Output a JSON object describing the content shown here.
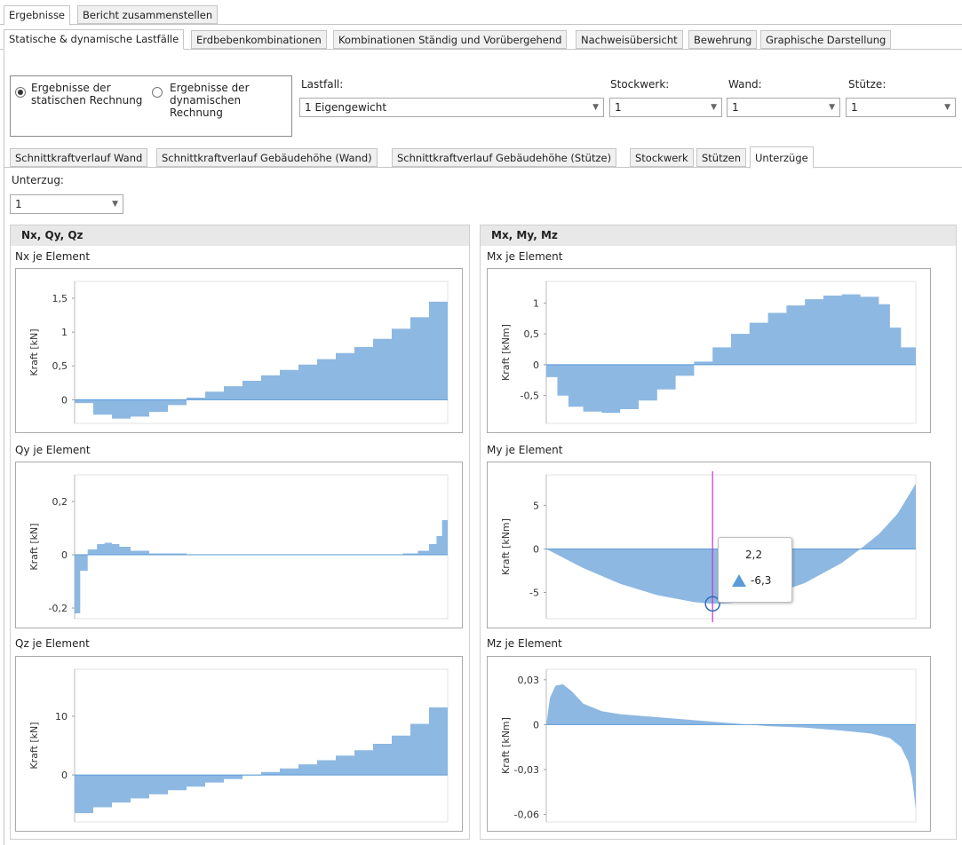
{
  "top_tabs": [
    "Ergebnisse",
    "Bericht zusammenstellen"
  ],
  "sub_tabs": [
    "Statische & dynamische Lastfälle",
    "Erdbebenkombinationen",
    "Kombinationen Ständig und Vorübergehend",
    "Nachweisübersicht",
    "Bewehrung",
    "Graphische Darstellung"
  ],
  "radio": {
    "static_label_1": "Ergebnisse der",
    "static_label_2": "statischen Rechnung",
    "dynamic_label_1": "Ergebnisse der",
    "dynamic_label_2": "dynamischen",
    "dynamic_label_3": "Rechnung",
    "selected": "static"
  },
  "filters": {
    "lastfall_label": "Lastfall:",
    "lastfall_value": "1 Eigengewicht",
    "stockwerk_label": "Stockwerk:",
    "stockwerk_value": "1",
    "wand_label": "Wand:",
    "wand_value": "1",
    "stuetze_label": "Stütze:",
    "stuetze_value": "1"
  },
  "result_tabs": [
    "Schnittkraftverlauf Wand",
    "Schnittkraftverlauf Gebäudehöhe (Wand)",
    "Schnittkraftverlauf Gebäudehöhe (Stütze)",
    "Stockwerk",
    "Stützen",
    "Unterzüge"
  ],
  "unterzug": {
    "label": "Unterzug:",
    "value": "1"
  },
  "panels": {
    "left_title": "Nx, Qy, Qz",
    "right_title": "Mx, My, Mz"
  },
  "tooltip": {
    "x": "2,2",
    "y": "-6,3"
  },
  "colors": {
    "fill": "#8db8e2",
    "stroke": "#5b9bd5",
    "crosshair": "#cc33cc"
  },
  "chart_data": [
    {
      "type": "area",
      "title": "Nx je Element",
      "ylabel": "Kraft [kN]",
      "yticks": [
        "1,5",
        "1",
        "0,5",
        "0"
      ],
      "ylim": [
        -0.35,
        1.75
      ],
      "xlim": [
        0,
        1
      ],
      "step": true,
      "x": [
        0,
        0.05,
        0.1,
        0.15,
        0.2,
        0.25,
        0.3,
        0.35,
        0.4,
        0.45,
        0.5,
        0.55,
        0.6,
        0.65,
        0.7,
        0.75,
        0.8,
        0.85,
        0.9,
        0.95,
        1
      ],
      "values": [
        -0.05,
        -0.22,
        -0.28,
        -0.25,
        -0.18,
        -0.08,
        0.03,
        0.12,
        0.2,
        0.28,
        0.36,
        0.44,
        0.52,
        0.6,
        0.69,
        0.78,
        0.9,
        1.05,
        1.22,
        1.45,
        1.6
      ]
    },
    {
      "type": "area",
      "title": "Qy je Element",
      "ylabel": "Kraft [kN]",
      "yticks": [
        "0,2",
        "0",
        "-0,2"
      ],
      "ylim": [
        -0.24,
        0.3
      ],
      "xlim": [
        0,
        1
      ],
      "step": true,
      "x": [
        0,
        0.015,
        0.035,
        0.06,
        0.08,
        0.1,
        0.12,
        0.15,
        0.2,
        0.3,
        0.4,
        0.5,
        0.6,
        0.7,
        0.8,
        0.88,
        0.92,
        0.95,
        0.97,
        0.985,
        1
      ],
      "values": [
        -0.22,
        -0.06,
        0.02,
        0.04,
        0.045,
        0.04,
        0.03,
        0.015,
        0.005,
        0,
        0,
        0,
        0,
        0,
        0,
        0.005,
        0.015,
        0.04,
        0.07,
        0.13,
        0.25
      ]
    },
    {
      "type": "area",
      "title": "Qz je Element",
      "ylabel": "Kraft [kN]",
      "yticks": [
        "10",
        "0"
      ],
      "ylim": [
        -8,
        18
      ],
      "xlim": [
        0,
        1
      ],
      "step": true,
      "x": [
        0,
        0.05,
        0.1,
        0.15,
        0.2,
        0.25,
        0.3,
        0.35,
        0.4,
        0.45,
        0.5,
        0.55,
        0.6,
        0.65,
        0.7,
        0.75,
        0.8,
        0.85,
        0.9,
        0.95,
        1
      ],
      "values": [
        -6.5,
        -5.5,
        -4.7,
        -4,
        -3.3,
        -2.6,
        -2,
        -1.3,
        -0.7,
        -0.1,
        0.5,
        1.1,
        1.8,
        2.5,
        3.3,
        4.2,
        5.3,
        6.7,
        8.7,
        11.5,
        16.5
      ]
    },
    {
      "type": "area",
      "title": "Mx je Element",
      "ylabel": "Kraft [kNm]",
      "yticks": [
        "1",
        "0,5",
        "0",
        "-0,5"
      ],
      "ylim": [
        -0.95,
        1.35
      ],
      "xlim": [
        0,
        1
      ],
      "step": true,
      "x": [
        0,
        0.03,
        0.06,
        0.1,
        0.15,
        0.2,
        0.25,
        0.3,
        0.35,
        0.4,
        0.45,
        0.5,
        0.55,
        0.6,
        0.65,
        0.7,
        0.75,
        0.8,
        0.85,
        0.9,
        0.93,
        0.96,
        1
      ],
      "values": [
        -0.2,
        -0.5,
        -0.68,
        -0.76,
        -0.78,
        -0.72,
        -0.58,
        -0.4,
        -0.18,
        0.05,
        0.28,
        0.5,
        0.68,
        0.84,
        0.96,
        1.06,
        1.12,
        1.14,
        1.1,
        0.98,
        0.6,
        0.28,
        0.05
      ]
    },
    {
      "type": "area",
      "title": "My je Element",
      "ylabel": "Kraft [kNm]",
      "yticks": [
        "5",
        "0",
        "-5"
      ],
      "ylim": [
        -8,
        8.5
      ],
      "xlim": [
        0,
        1
      ],
      "step": false,
      "x": [
        0,
        0.1,
        0.2,
        0.3,
        0.4,
        0.45,
        0.5,
        0.6,
        0.7,
        0.8,
        0.85,
        0.9,
        0.95,
        1
      ],
      "values": [
        0,
        -2.2,
        -4,
        -5.3,
        -6.1,
        -6.3,
        -6.2,
        -5.4,
        -3.9,
        -1.6,
        0,
        1.7,
        4,
        7.5
      ]
    },
    {
      "type": "area",
      "title": "Mz je Element",
      "ylabel": "Kraft [kNm]",
      "yticks": [
        "0,03",
        "0",
        "-0,03",
        "-0,06"
      ],
      "ylim": [
        -0.065,
        0.037
      ],
      "xlim": [
        0,
        1
      ],
      "step": false,
      "x": [
        0,
        0.01,
        0.025,
        0.045,
        0.07,
        0.1,
        0.15,
        0.2,
        0.3,
        0.4,
        0.5,
        0.6,
        0.7,
        0.8,
        0.88,
        0.93,
        0.96,
        0.98,
        0.99,
        1
      ],
      "values": [
        0,
        0.018,
        0.026,
        0.027,
        0.022,
        0.014,
        0.009,
        0.007,
        0.005,
        0.003,
        0.001,
        -0.001,
        -0.002,
        -0.004,
        -0.006,
        -0.009,
        -0.015,
        -0.025,
        -0.036,
        -0.057
      ]
    }
  ]
}
